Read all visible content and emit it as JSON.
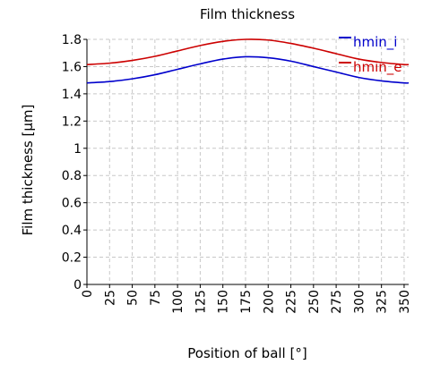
{
  "chart_data": {
    "type": "line",
    "title": "Film thickness",
    "xlabel": "Position of ball [°]",
    "ylabel": "Film thickness [µm]",
    "xlim": [
      0,
      355
    ],
    "ylim": [
      0,
      1.8
    ],
    "grid": true,
    "legend_position": "top-right",
    "x_ticks": [
      0,
      25,
      50,
      75,
      100,
      125,
      150,
      175,
      200,
      225,
      250,
      275,
      300,
      325,
      350
    ],
    "y_ticks": [
      0,
      0.2,
      0.4,
      0.6,
      0.8,
      1,
      1.2,
      1.4,
      1.6,
      1.8
    ],
    "x": [
      0,
      25,
      50,
      75,
      100,
      125,
      150,
      175,
      200,
      225,
      250,
      275,
      300,
      325,
      350,
      355
    ],
    "series": [
      {
        "name": "hmin_i",
        "color": "#0000cc",
        "values": [
          1.48,
          1.49,
          1.51,
          1.54,
          1.58,
          1.62,
          1.655,
          1.672,
          1.665,
          1.64,
          1.6,
          1.56,
          1.52,
          1.495,
          1.48,
          1.48
        ]
      },
      {
        "name": "hmin_e",
        "color": "#cc0000",
        "values": [
          1.615,
          1.625,
          1.645,
          1.675,
          1.715,
          1.755,
          1.785,
          1.8,
          1.795,
          1.77,
          1.735,
          1.695,
          1.655,
          1.63,
          1.615,
          1.615
        ]
      }
    ]
  }
}
